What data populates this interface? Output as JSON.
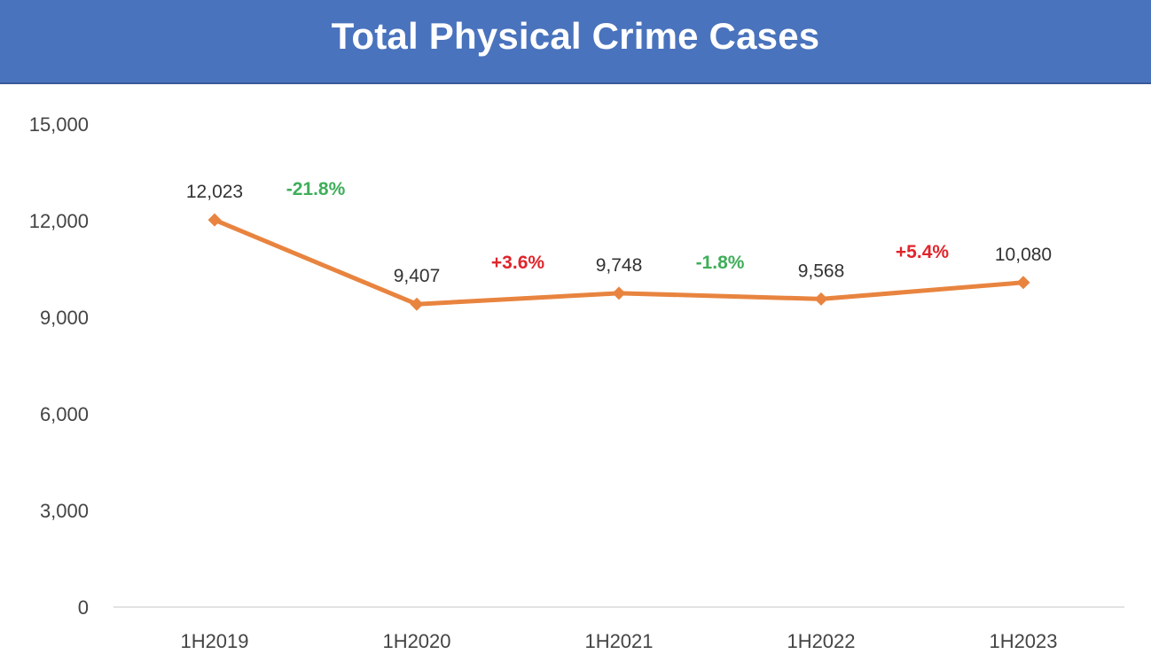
{
  "chart_data": {
    "type": "line",
    "title": "Total Physical Crime Cases",
    "categories": [
      "1H2019",
      "1H2020",
      "1H2021",
      "1H2022",
      "1H2023"
    ],
    "series": [
      {
        "values": [
          12023,
          9407,
          9748,
          9568,
          10080
        ],
        "color": "#e8843f"
      }
    ],
    "data_labels": [
      "12,023",
      "9,407",
      "9,748",
      "9,568",
      "10,080"
    ],
    "change_labels": [
      {
        "text": "-21.8%",
        "direction": "down"
      },
      {
        "text": "+3.6%",
        "direction": "up"
      },
      {
        "text": "-1.8%",
        "direction": "down"
      },
      {
        "text": "+5.4%",
        "direction": "up"
      }
    ],
    "change_colors": {
      "down": "#3fae5a",
      "up": "#e0252b"
    },
    "y_ticks": [
      0,
      3000,
      6000,
      9000,
      12000,
      15000
    ],
    "y_tick_labels": [
      "0",
      "3,000",
      "6,000",
      "9,000",
      "12,000",
      "15,000"
    ],
    "ylim": [
      0,
      15000
    ],
    "xlabel": "",
    "ylabel": "",
    "grid": false,
    "legend": "none"
  },
  "colors": {
    "title_bar": "#4a73bd",
    "title_text": "#ffffff",
    "axis_line": "#d9d9d9"
  }
}
